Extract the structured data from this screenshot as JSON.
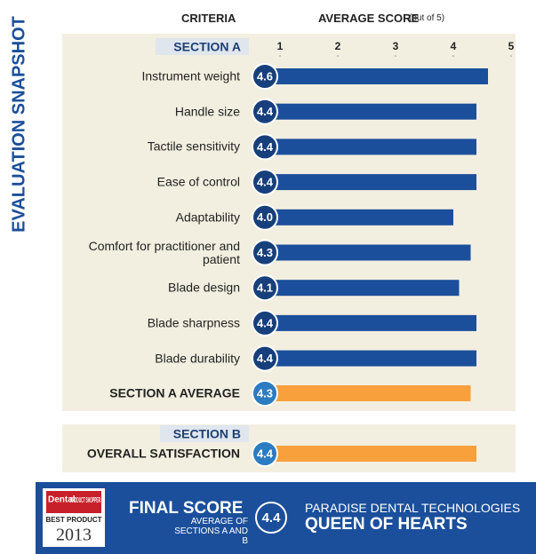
{
  "side_title": "EVALUATION SNAPSHOT",
  "chart_data": {
    "type": "bar",
    "criteria_header": "CRITERIA",
    "score_header": "AVERAGE SCORE",
    "score_header_note": "(out of 5)",
    "xlim": [
      1,
      5
    ],
    "xticks": [
      1,
      2,
      3,
      4,
      5
    ],
    "section_a": {
      "title": "SECTION A",
      "color": "#1b4f9b",
      "categories": [
        "Instrument weight",
        "Handle size",
        "Tactile sensitivity",
        "Ease of control",
        "Adaptability",
        "Comfort for practitioner and patient",
        "Blade design",
        "Blade sharpness",
        "Blade durability"
      ],
      "values": [
        4.6,
        4.4,
        4.4,
        4.4,
        4.0,
        4.3,
        4.1,
        4.4,
        4.4
      ],
      "value_labels": [
        "4.6",
        "4.4",
        "4.4",
        "4.4",
        "4.0",
        "4.3",
        "4.1",
        "4.4",
        "4.4"
      ]
    },
    "section_a_average": {
      "label": "SECTION A AVERAGE",
      "value": 4.3,
      "color": "#f7a03c"
    },
    "section_b": {
      "title": "SECTION B",
      "label": "OVERALL SATISFACTION",
      "value": 4.4,
      "color": "#f7a03c"
    }
  },
  "footer": {
    "badge": {
      "brand": "Dental",
      "name": "PRODUCT SHOPPER",
      "award": "BEST PRODUCT",
      "year": "2013"
    },
    "final_title": "FINAL SCORE",
    "final_note": "AVERAGE OF SECTIONS A AND B",
    "final_score": 4.4,
    "company": "PARADISE DENTAL TECHNOLOGIES",
    "product": "QUEEN OF HEARTS"
  }
}
